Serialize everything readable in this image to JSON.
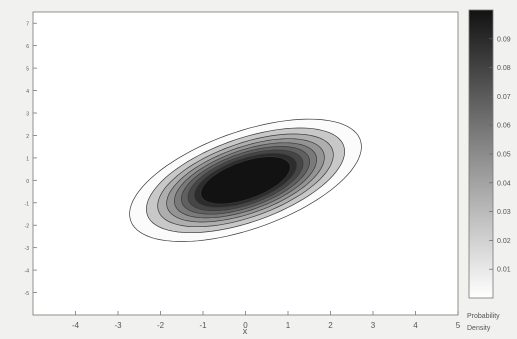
{
  "chart_data": {
    "type": "contour",
    "title": "",
    "xlabel": "x",
    "ylabel": "",
    "xlim": [
      -5,
      5
    ],
    "ylim": [
      -6,
      7.5
    ],
    "x_ticks": [
      -4,
      -3,
      -2,
      -1,
      0,
      1,
      2,
      3,
      4,
      5
    ],
    "y_ticks": [
      -5,
      -4,
      -3,
      -2,
      -1,
      0,
      1,
      2,
      3,
      4,
      5,
      6,
      7
    ],
    "grid": false,
    "distribution": {
      "kind": "bivariate normal",
      "mean": [
        0,
        0
      ],
      "sd_x": 1.2,
      "sd_y": 1.2,
      "correlation": 0.55
    },
    "contour_levels": [
      0.01,
      0.02,
      0.03,
      0.04,
      0.05,
      0.06,
      0.07,
      0.08,
      0.09
    ],
    "colorbar": {
      "ticks": [
        "0.09",
        "0.08",
        "0.07",
        "0.06",
        "0.05",
        "0.04",
        "0.03",
        "0.02",
        "0.01"
      ],
      "label_line1": "Probability",
      "label_line2": "Density",
      "color_low": "#ffffff",
      "color_high": "#121212"
    }
  }
}
